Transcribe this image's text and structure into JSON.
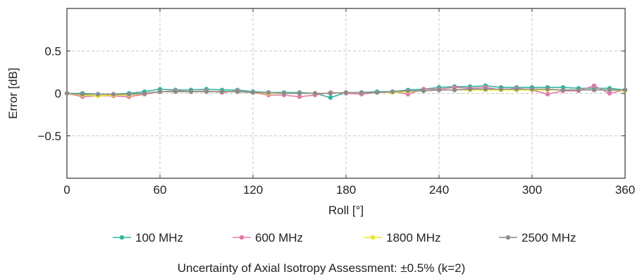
{
  "chart_data": {
    "type": "line",
    "title": "",
    "xlabel": "Roll [°]",
    "ylabel": "Error [dB]",
    "xlim": [
      0,
      360
    ],
    "ylim": [
      -1,
      1
    ],
    "xticks": [
      0,
      60,
      120,
      180,
      240,
      300,
      360
    ],
    "xtick_labels": [
      "0",
      "60",
      "120",
      "180",
      "240",
      "300",
      "360"
    ],
    "yticks": [
      0.5,
      0,
      -0.5
    ],
    "ytick_labels": [
      "0.5",
      "0",
      "−0.5"
    ],
    "grid": true,
    "legend_position": "bottom",
    "x": [
      0,
      10,
      20,
      30,
      40,
      50,
      60,
      70,
      80,
      90,
      100,
      110,
      120,
      130,
      140,
      150,
      160,
      170,
      180,
      190,
      200,
      210,
      220,
      230,
      240,
      250,
      260,
      270,
      280,
      290,
      300,
      310,
      320,
      330,
      340,
      350,
      360
    ],
    "series": [
      {
        "name": "100 MHz",
        "color": "#2fb5a3",
        "values": [
          0.0,
          0.0,
          -0.01,
          -0.01,
          0.0,
          0.02,
          0.05,
          0.04,
          0.04,
          0.05,
          0.04,
          0.04,
          0.02,
          0.01,
          0.01,
          0.01,
          0.0,
          -0.05,
          0.01,
          0.01,
          0.02,
          0.02,
          0.04,
          0.05,
          0.07,
          0.08,
          0.08,
          0.09,
          0.07,
          0.07,
          0.07,
          0.07,
          0.07,
          0.06,
          0.06,
          0.06,
          0.04
        ]
      },
      {
        "name": "600 MHz",
        "color": "#e07aa8",
        "values": [
          0.0,
          -0.04,
          -0.03,
          -0.03,
          -0.04,
          -0.01,
          0.02,
          0.03,
          0.02,
          0.03,
          0.01,
          0.03,
          0.01,
          -0.02,
          -0.02,
          -0.04,
          -0.02,
          0.01,
          0.0,
          -0.01,
          0.01,
          0.02,
          -0.01,
          0.05,
          0.05,
          0.07,
          0.06,
          0.07,
          0.04,
          0.06,
          0.04,
          -0.01,
          0.03,
          0.03,
          0.09,
          0.0,
          0.04
        ]
      },
      {
        "name": "1800 MHz",
        "color": "#e8e82a",
        "values": [
          0.0,
          -0.02,
          -0.03,
          -0.02,
          -0.02,
          0.0,
          0.02,
          0.02,
          0.02,
          0.02,
          0.02,
          0.02,
          0.01,
          0.0,
          0.0,
          0.0,
          0.0,
          0.0,
          0.01,
          0.01,
          0.01,
          0.01,
          0.02,
          0.03,
          0.04,
          0.04,
          0.04,
          0.04,
          0.04,
          0.04,
          0.04,
          0.04,
          0.04,
          0.04,
          0.04,
          0.04,
          0.03
        ]
      },
      {
        "name": "2500 MHz",
        "color": "#8c8c8c",
        "values": [
          0.0,
          -0.01,
          -0.01,
          -0.01,
          -0.01,
          0.0,
          0.02,
          0.02,
          0.02,
          0.02,
          0.02,
          0.02,
          0.01,
          0.01,
          0.0,
          0.0,
          0.0,
          0.0,
          0.01,
          0.01,
          0.01,
          0.02,
          0.03,
          0.03,
          0.04,
          0.04,
          0.05,
          0.05,
          0.05,
          0.05,
          0.05,
          0.05,
          0.04,
          0.04,
          0.04,
          0.04,
          0.04
        ]
      }
    ]
  },
  "footnote": "Uncertainty of Axial Isotropy Assessment: ±0.5% (k=2)"
}
